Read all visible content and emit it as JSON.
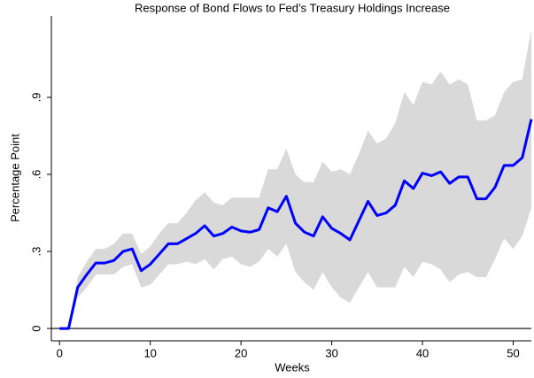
{
  "chart_data": {
    "type": "band-line",
    "title": "Response of Bond Flows to Fed’s Treasury Holdings Increase",
    "xlabel": "Weeks",
    "ylabel": "Percentage Point",
    "x": [
      0,
      1,
      2,
      3,
      4,
      5,
      6,
      7,
      8,
      9,
      10,
      11,
      12,
      13,
      14,
      15,
      16,
      17,
      18,
      19,
      20,
      21,
      22,
      23,
      24,
      25,
      26,
      27,
      28,
      29,
      30,
      31,
      32,
      33,
      34,
      35,
      36,
      37,
      38,
      39,
      40,
      41,
      42,
      43,
      44,
      45,
      46,
      47,
      48,
      49,
      50,
      51,
      52
    ],
    "values": [
      0,
      0,
      0.16,
      0.21,
      0.255,
      0.255,
      0.265,
      0.3,
      0.31,
      0.225,
      0.25,
      0.29,
      0.33,
      0.33,
      0.35,
      0.37,
      0.4,
      0.36,
      0.37,
      0.395,
      0.38,
      0.375,
      0.385,
      0.47,
      0.455,
      0.515,
      0.41,
      0.375,
      0.36,
      0.435,
      0.39,
      0.37,
      0.345,
      0.42,
      0.495,
      0.44,
      0.45,
      0.48,
      0.575,
      0.545,
      0.605,
      0.595,
      0.61,
      0.565,
      0.59,
      0.59,
      0.505,
      0.505,
      0.55,
      0.635,
      0.635,
      0.665,
      0.815
    ],
    "color": "#0000ff",
    "band": {
      "color": "#d9d9d9",
      "upper": [
        0,
        0,
        0.2,
        0.26,
        0.31,
        0.31,
        0.33,
        0.37,
        0.37,
        0.29,
        0.32,
        0.37,
        0.41,
        0.41,
        0.45,
        0.5,
        0.53,
        0.49,
        0.48,
        0.51,
        0.51,
        0.51,
        0.51,
        0.62,
        0.62,
        0.7,
        0.6,
        0.57,
        0.57,
        0.65,
        0.61,
        0.62,
        0.6,
        0.68,
        0.77,
        0.72,
        0.74,
        0.8,
        0.92,
        0.87,
        0.96,
        0.95,
        1.0,
        0.95,
        0.97,
        0.95,
        0.81,
        0.81,
        0.83,
        0.92,
        0.96,
        0.97,
        1.165
      ],
      "lower": [
        0,
        0,
        0.12,
        0.16,
        0.21,
        0.21,
        0.21,
        0.24,
        0.25,
        0.16,
        0.17,
        0.21,
        0.25,
        0.25,
        0.26,
        0.25,
        0.27,
        0.23,
        0.27,
        0.28,
        0.25,
        0.24,
        0.26,
        0.31,
        0.28,
        0.33,
        0.22,
        0.18,
        0.15,
        0.22,
        0.16,
        0.12,
        0.1,
        0.16,
        0.22,
        0.16,
        0.16,
        0.16,
        0.24,
        0.2,
        0.26,
        0.25,
        0.23,
        0.18,
        0.21,
        0.22,
        0.2,
        0.2,
        0.27,
        0.35,
        0.31,
        0.36,
        0.47
      ]
    },
    "reference_line": 0,
    "xlim": [
      -0.9,
      52
    ],
    "xticks": [
      0,
      10,
      20,
      30,
      40,
      50
    ],
    "ylim": [
      -0.048,
      1.217
    ],
    "yticks": [
      0,
      {
        "value": 0.3,
        "label": ".3"
      },
      {
        "value": 0.6,
        "label": ".6"
      },
      {
        "value": 0.9,
        "label": ".9"
      }
    ]
  }
}
